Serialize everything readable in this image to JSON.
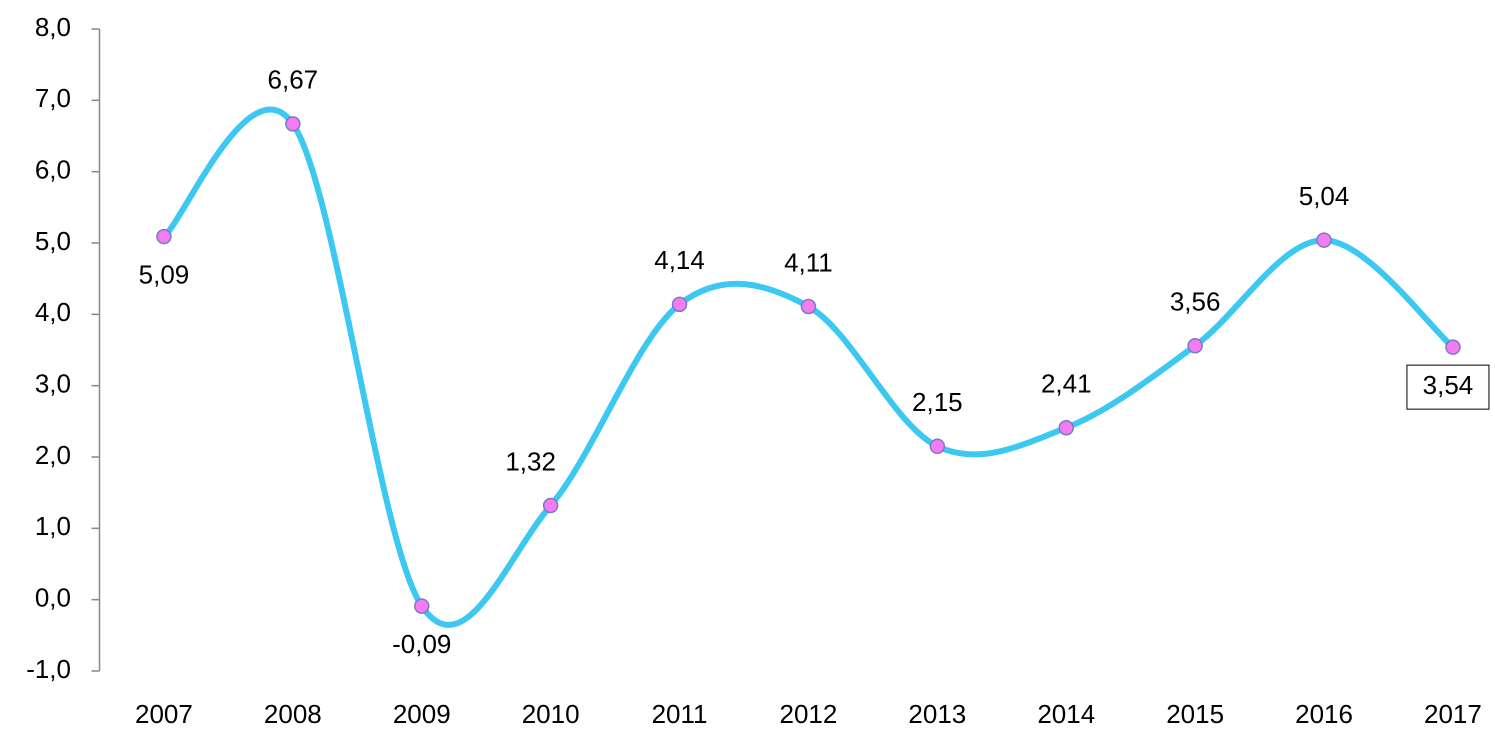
{
  "chart_data": {
    "type": "line",
    "categories": [
      "2007",
      "2008",
      "2009",
      "2010",
      "2011",
      "2012",
      "2013",
      "2014",
      "2015",
      "2016",
      "2017"
    ],
    "series": [
      {
        "color": "#3cc8f0",
        "marker_color": "#f27cf0",
        "values": [
          5.09,
          6.67,
          -0.09,
          1.32,
          4.14,
          4.11,
          2.15,
          2.41,
          3.56,
          5.04,
          3.54
        ],
        "value_labels": [
          "5,09",
          "6,67",
          "-0,09",
          "1,32",
          "4,14",
          "4,11",
          "2,15",
          "2,41",
          "3,56",
          "5,04",
          "3,54"
        ]
      }
    ],
    "ylim": [
      -1,
      8
    ],
    "yticks": [
      {
        "value": -1,
        "label": "-1,0"
      },
      {
        "value": 0,
        "label": "0,0"
      },
      {
        "value": 1,
        "label": "1,0"
      },
      {
        "value": 2,
        "label": "2,0"
      },
      {
        "value": 3,
        "label": "3,0"
      },
      {
        "value": 4,
        "label": "4,0"
      },
      {
        "value": 5,
        "label": "5,0"
      },
      {
        "value": 6,
        "label": "6,0"
      },
      {
        "value": 7,
        "label": "7,0"
      },
      {
        "value": 8,
        "label": "8,0"
      }
    ],
    "smooth": true
  }
}
